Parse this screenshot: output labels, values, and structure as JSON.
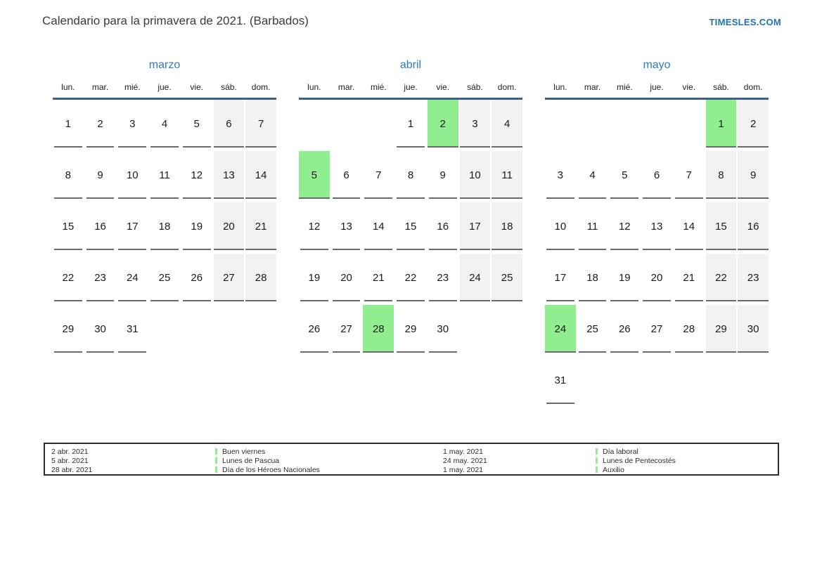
{
  "header": {
    "title": "Calendario para la primavera de 2021. (Barbados)",
    "site_link": "TIMESLES.COM"
  },
  "weekdays": [
    "lun.",
    "mar.",
    "mié.",
    "jue.",
    "vie.",
    "sáb.",
    "dom."
  ],
  "months": [
    {
      "name": "marzo",
      "cells": [
        {
          "d": "1",
          "t": "day"
        },
        {
          "d": "2",
          "t": "day"
        },
        {
          "d": "3",
          "t": "day"
        },
        {
          "d": "4",
          "t": "day"
        },
        {
          "d": "5",
          "t": "day"
        },
        {
          "d": "6",
          "t": "weekend"
        },
        {
          "d": "7",
          "t": "weekend"
        },
        {
          "d": "8",
          "t": "day"
        },
        {
          "d": "9",
          "t": "day"
        },
        {
          "d": "10",
          "t": "day"
        },
        {
          "d": "11",
          "t": "day"
        },
        {
          "d": "12",
          "t": "day"
        },
        {
          "d": "13",
          "t": "weekend"
        },
        {
          "d": "14",
          "t": "weekend"
        },
        {
          "d": "15",
          "t": "day"
        },
        {
          "d": "16",
          "t": "day"
        },
        {
          "d": "17",
          "t": "day"
        },
        {
          "d": "18",
          "t": "day"
        },
        {
          "d": "19",
          "t": "day"
        },
        {
          "d": "20",
          "t": "weekend"
        },
        {
          "d": "21",
          "t": "weekend"
        },
        {
          "d": "22",
          "t": "day"
        },
        {
          "d": "23",
          "t": "day"
        },
        {
          "d": "24",
          "t": "day"
        },
        {
          "d": "25",
          "t": "day"
        },
        {
          "d": "26",
          "t": "day"
        },
        {
          "d": "27",
          "t": "weekend"
        },
        {
          "d": "28",
          "t": "weekend"
        },
        {
          "d": "29",
          "t": "day"
        },
        {
          "d": "30",
          "t": "day"
        },
        {
          "d": "31",
          "t": "day"
        },
        {
          "d": "",
          "t": "empty"
        },
        {
          "d": "",
          "t": "empty"
        },
        {
          "d": "",
          "t": "empty"
        },
        {
          "d": "",
          "t": "empty"
        }
      ]
    },
    {
      "name": "abril",
      "cells": [
        {
          "d": "",
          "t": "empty"
        },
        {
          "d": "",
          "t": "empty"
        },
        {
          "d": "",
          "t": "empty"
        },
        {
          "d": "1",
          "t": "day"
        },
        {
          "d": "2",
          "t": "holiday"
        },
        {
          "d": "3",
          "t": "weekend"
        },
        {
          "d": "4",
          "t": "weekend"
        },
        {
          "d": "5",
          "t": "holiday"
        },
        {
          "d": "6",
          "t": "day"
        },
        {
          "d": "7",
          "t": "day"
        },
        {
          "d": "8",
          "t": "day"
        },
        {
          "d": "9",
          "t": "day"
        },
        {
          "d": "10",
          "t": "weekend"
        },
        {
          "d": "11",
          "t": "weekend"
        },
        {
          "d": "12",
          "t": "day"
        },
        {
          "d": "13",
          "t": "day"
        },
        {
          "d": "14",
          "t": "day"
        },
        {
          "d": "15",
          "t": "day"
        },
        {
          "d": "16",
          "t": "day"
        },
        {
          "d": "17",
          "t": "weekend"
        },
        {
          "d": "18",
          "t": "weekend"
        },
        {
          "d": "19",
          "t": "day"
        },
        {
          "d": "20",
          "t": "day"
        },
        {
          "d": "21",
          "t": "day"
        },
        {
          "d": "22",
          "t": "day"
        },
        {
          "d": "23",
          "t": "day"
        },
        {
          "d": "24",
          "t": "weekend"
        },
        {
          "d": "25",
          "t": "weekend"
        },
        {
          "d": "26",
          "t": "day"
        },
        {
          "d": "27",
          "t": "day"
        },
        {
          "d": "28",
          "t": "holiday"
        },
        {
          "d": "29",
          "t": "day"
        },
        {
          "d": "30",
          "t": "day"
        },
        {
          "d": "",
          "t": "empty"
        },
        {
          "d": "",
          "t": "empty"
        }
      ]
    },
    {
      "name": "mayo",
      "cells": [
        {
          "d": "",
          "t": "empty"
        },
        {
          "d": "",
          "t": "empty"
        },
        {
          "d": "",
          "t": "empty"
        },
        {
          "d": "",
          "t": "empty"
        },
        {
          "d": "",
          "t": "empty"
        },
        {
          "d": "1",
          "t": "holiday"
        },
        {
          "d": "2",
          "t": "weekend"
        },
        {
          "d": "3",
          "t": "day"
        },
        {
          "d": "4",
          "t": "day"
        },
        {
          "d": "5",
          "t": "day"
        },
        {
          "d": "6",
          "t": "day"
        },
        {
          "d": "7",
          "t": "day"
        },
        {
          "d": "8",
          "t": "weekend"
        },
        {
          "d": "9",
          "t": "weekend"
        },
        {
          "d": "10",
          "t": "day"
        },
        {
          "d": "11",
          "t": "day"
        },
        {
          "d": "12",
          "t": "day"
        },
        {
          "d": "13",
          "t": "day"
        },
        {
          "d": "14",
          "t": "day"
        },
        {
          "d": "15",
          "t": "weekend"
        },
        {
          "d": "16",
          "t": "weekend"
        },
        {
          "d": "17",
          "t": "day"
        },
        {
          "d": "18",
          "t": "day"
        },
        {
          "d": "19",
          "t": "day"
        },
        {
          "d": "20",
          "t": "day"
        },
        {
          "d": "21",
          "t": "day"
        },
        {
          "d": "22",
          "t": "weekend"
        },
        {
          "d": "23",
          "t": "weekend"
        },
        {
          "d": "24",
          "t": "holiday"
        },
        {
          "d": "25",
          "t": "day"
        },
        {
          "d": "26",
          "t": "day"
        },
        {
          "d": "27",
          "t": "day"
        },
        {
          "d": "28",
          "t": "day"
        },
        {
          "d": "29",
          "t": "weekend"
        },
        {
          "d": "30",
          "t": "weekend"
        },
        {
          "d": "31",
          "t": "day"
        },
        {
          "d": "",
          "t": "empty"
        },
        {
          "d": "",
          "t": "empty"
        },
        {
          "d": "",
          "t": "empty"
        },
        {
          "d": "",
          "t": "empty"
        },
        {
          "d": "",
          "t": "empty"
        },
        {
          "d": "",
          "t": "empty"
        }
      ]
    }
  ],
  "legend": {
    "columns": [
      {
        "type": "dates",
        "items": [
          "2 abr. 2021",
          "5 abr. 2021",
          "28 abr. 2021"
        ]
      },
      {
        "type": "holidays",
        "items": [
          "Buen viernes",
          "Lunes de Pascua",
          "Día de los Héroes Nacionales"
        ]
      },
      {
        "type": "dates",
        "items": [
          "1 may. 2021",
          "24 may. 2021",
          "1 may. 2021"
        ]
      },
      {
        "type": "holidays",
        "items": [
          "Día laboral",
          "Lunes de Pentecostés",
          "Auxilio"
        ]
      }
    ]
  },
  "colors": {
    "holiday_green": "#90ee90",
    "weekend_gray": "#f2f2f2",
    "header_line_blue": "#3a608c",
    "month_title_blue": "#2e7cc3",
    "link_blue": "#2271b3",
    "cell_underline": "#6a6a6a",
    "legend_border": "#2d2d2d"
  }
}
